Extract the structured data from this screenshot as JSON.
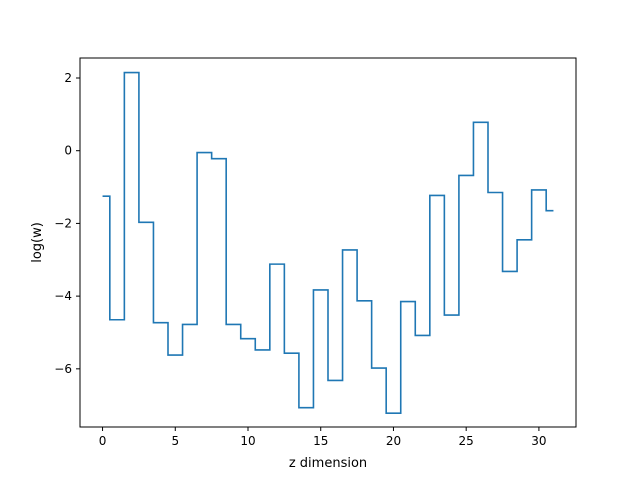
{
  "chart_data": {
    "type": "line",
    "drawstyle": "steps-mid",
    "title": "",
    "xlabel": "z dimension",
    "ylabel": "log(w)",
    "xlim": [
      -1.55,
      32.55
    ],
    "ylim": [
      -7.6,
      2.55
    ],
    "xticks": [
      0,
      5,
      10,
      15,
      20,
      25,
      30
    ],
    "yticks": [
      -6,
      -4,
      -2,
      0,
      2
    ],
    "ytick_labels": [
      "−6",
      "−4",
      "−2",
      "0",
      "2"
    ],
    "grid": false,
    "colors": {
      "line": "#1f77b4",
      "axes": "#000000",
      "background": "#ffffff"
    },
    "series": [
      {
        "x": [
          0,
          1,
          2,
          3,
          4,
          5,
          6,
          7,
          8,
          9,
          10,
          11,
          12,
          13,
          14,
          15,
          16,
          17,
          18,
          19,
          20,
          21,
          22,
          23,
          24,
          25,
          26,
          27,
          28,
          29,
          30,
          31
        ],
        "y": [
          -1.25,
          -4.65,
          2.15,
          -1.97,
          -4.73,
          -5.62,
          -4.78,
          -0.05,
          -0.22,
          -4.78,
          -5.17,
          -5.48,
          -3.12,
          -5.57,
          -7.07,
          -3.83,
          -6.32,
          -2.73,
          -4.13,
          -5.98,
          -7.22,
          -4.15,
          -5.08,
          -1.23,
          -4.52,
          -0.68,
          0.78,
          -1.15,
          -3.32,
          -2.45,
          -1.08,
          -1.65
        ]
      }
    ]
  }
}
